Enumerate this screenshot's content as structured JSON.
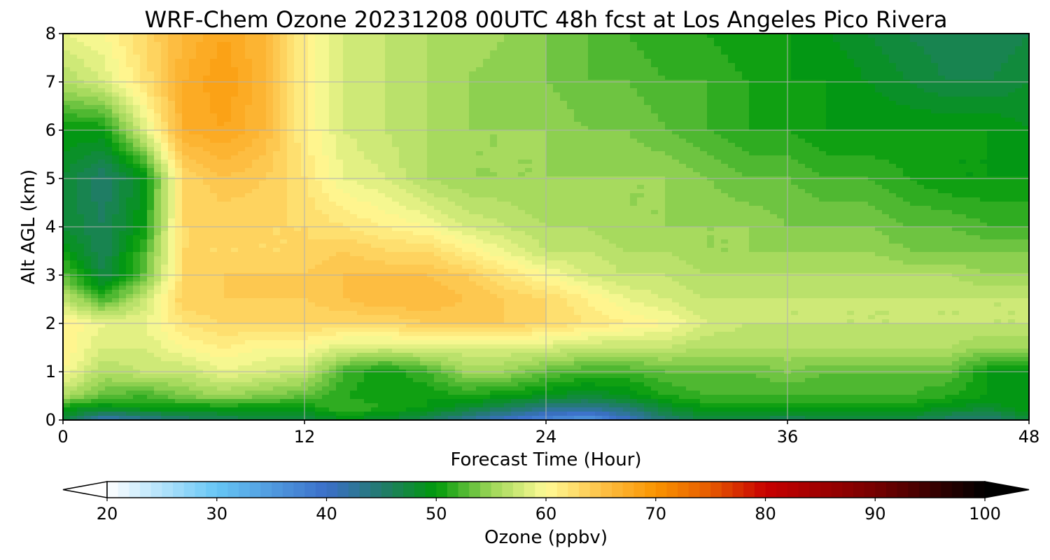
{
  "chart_data": {
    "type": "heatmap",
    "title": "WRF-Chem Ozone  20231208 00UTC 48h fcst at Los Angeles Pico Rivera",
    "xlabel": "Forecast Time (Hour)",
    "ylabel": "Alt AGL (km)",
    "xlim": [
      0,
      48
    ],
    "ylim": [
      0,
      8
    ],
    "xticks": [
      "0",
      "12",
      "24",
      "36",
      "48"
    ],
    "yticks": [
      "0",
      "1",
      "2",
      "3",
      "4",
      "5",
      "6",
      "7",
      "8"
    ],
    "grid": true,
    "colorbar": {
      "label": "Ozone  (ppbv)",
      "min": 20,
      "max": 100,
      "step": 1,
      "ticks": [
        "20",
        "30",
        "40",
        "50",
        "60",
        "70",
        "80",
        "90",
        "100"
      ],
      "extend": "both",
      "stops": [
        {
          "value": 20,
          "color": "#ffffff"
        },
        {
          "value": 30,
          "color": "#66c6f5"
        },
        {
          "value": 40,
          "color": "#3b6fc9"
        },
        {
          "value": 45,
          "color": "#227a6e"
        },
        {
          "value": 50,
          "color": "#009a0a"
        },
        {
          "value": 55,
          "color": "#9dd658"
        },
        {
          "value": 60,
          "color": "#fffb96"
        },
        {
          "value": 65,
          "color": "#fdc248"
        },
        {
          "value": 70,
          "color": "#fa9400"
        },
        {
          "value": 75,
          "color": "#e65a00"
        },
        {
          "value": 80,
          "color": "#c80000"
        },
        {
          "value": 90,
          "color": "#760000"
        },
        {
          "value": 100,
          "color": "#000000"
        }
      ]
    },
    "grid_data": {
      "x": [
        0,
        2,
        4,
        6,
        8,
        10,
        12,
        14,
        16,
        18,
        20,
        22,
        24,
        26,
        28,
        30,
        32,
        34,
        36,
        38,
        40,
        42,
        44,
        46,
        48
      ],
      "y": [
        0,
        0.25,
        0.5,
        1,
        1.5,
        2,
        2.5,
        3,
        3.5,
        4,
        5,
        6,
        7,
        8
      ],
      "values": [
        [
          48,
          41,
          43,
          45,
          46,
          47,
          47,
          49,
          48,
          46,
          43,
          40,
          37,
          35,
          40,
          45,
          47,
          47,
          46,
          47,
          47,
          47,
          45,
          45,
          47
        ],
        [
          50,
          49,
          50,
          50,
          50,
          50,
          50,
          52,
          51,
          50,
          48,
          46,
          44,
          43,
          45,
          48,
          50,
          50,
          50,
          50,
          50,
          50,
          49,
          48,
          50
        ],
        [
          56,
          53,
          52,
          54,
          55,
          54,
          53,
          51,
          50,
          50,
          51,
          50,
          49,
          48,
          49,
          51,
          52,
          52,
          52,
          52,
          52,
          52,
          51,
          50,
          50
        ],
        [
          60,
          56,
          57,
          57,
          59,
          58,
          57,
          52,
          50,
          52,
          55,
          55,
          53,
          52,
          52,
          53,
          53,
          53,
          54,
          53,
          53,
          53,
          53,
          50,
          49
        ],
        [
          61,
          58,
          58,
          60,
          61,
          60,
          60,
          58,
          58,
          58,
          58,
          58,
          58,
          57,
          57,
          57,
          56,
          56,
          56,
          56,
          56,
          56,
          56,
          55,
          55
        ],
        [
          61,
          59,
          59,
          62,
          63,
          63,
          63,
          63,
          63,
          64,
          64,
          64,
          63,
          62,
          61,
          60,
          58,
          57,
          57,
          57,
          57,
          57,
          57,
          57,
          57
        ],
        [
          57,
          52,
          57,
          64,
          64,
          64,
          64,
          65,
          66,
          66,
          65,
          64,
          63,
          61,
          59,
          58,
          57,
          57,
          57,
          57,
          57,
          57,
          57,
          57,
          57
        ],
        [
          53,
          47,
          53,
          63,
          64,
          64,
          64,
          65,
          65,
          65,
          64,
          62,
          60,
          58,
          57,
          57,
          56,
          56,
          56,
          56,
          56,
          56,
          56,
          55,
          55
        ],
        [
          50,
          46,
          52,
          63,
          63,
          63,
          63,
          64,
          63,
          63,
          61,
          59,
          57,
          57,
          56,
          56,
          55,
          55,
          55,
          55,
          55,
          54,
          54,
          54,
          54
        ],
        [
          48,
          46,
          50,
          63,
          63,
          63,
          63,
          62,
          61,
          60,
          58,
          57,
          56,
          56,
          55,
          55,
          55,
          55,
          54,
          54,
          54,
          53,
          53,
          52,
          52
        ],
        [
          48,
          45,
          49,
          63,
          65,
          64,
          62,
          59,
          58,
          56,
          55,
          55,
          55,
          55,
          55,
          55,
          54,
          53,
          53,
          52,
          52,
          51,
          50,
          50,
          50
        ],
        [
          50,
          50,
          58,
          67,
          68,
          66,
          61,
          58,
          57,
          56,
          55,
          55,
          55,
          54,
          54,
          53,
          52,
          51,
          51,
          50,
          50,
          50,
          50,
          50,
          49
        ],
        [
          56,
          58,
          62,
          67,
          69,
          66,
          61,
          58,
          57,
          56,
          55,
          54,
          54,
          53,
          53,
          52,
          52,
          51,
          50,
          50,
          49,
          48,
          47,
          47,
          48
        ],
        [
          59,
          60,
          63,
          66,
          68,
          66,
          61,
          58,
          57,
          56,
          56,
          55,
          54,
          53,
          52,
          51,
          51,
          50,
          50,
          49,
          48,
          47,
          46,
          46,
          47
        ]
      ]
    }
  }
}
